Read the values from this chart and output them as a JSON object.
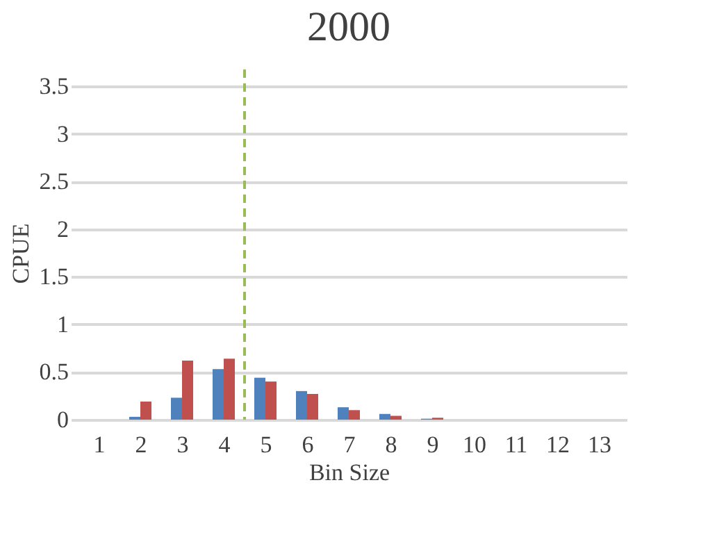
{
  "chart_data": {
    "type": "bar",
    "title": "2000",
    "xlabel": "Bin Size",
    "ylabel": "CPUE",
    "x": [
      1,
      2,
      3,
      4,
      5,
      6,
      7,
      8,
      9,
      10,
      11,
      12,
      13
    ],
    "xlim": [
      0.5,
      13.5
    ],
    "xticks": [
      1,
      2,
      3,
      4,
      5,
      6,
      7,
      8,
      9,
      10,
      11,
      12,
      13
    ],
    "series": [
      {
        "color": "#4f81bd",
        "values": [
          0,
          0.03,
          0.23,
          0.53,
          0.44,
          0.3,
          0.13,
          0.06,
          0.01,
          0,
          0,
          0,
          0
        ]
      },
      {
        "color": "#c0504d",
        "values": [
          0,
          0.19,
          0.62,
          0.64,
          0.4,
          0.27,
          0.1,
          0.04,
          0.02,
          0,
          0,
          0,
          0
        ]
      }
    ],
    "ylim": [
      0,
      3.5
    ],
    "yticks": [
      0,
      0.5,
      1,
      1.5,
      2,
      2.5,
      3,
      3.5
    ],
    "grid": "y",
    "ref_lines": [
      {
        "axis": "x",
        "value": 4.5,
        "color": "#9bbb59",
        "line_style": "dashed"
      }
    ]
  }
}
